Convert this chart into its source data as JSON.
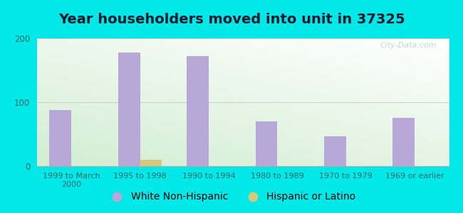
{
  "title": "Year householders moved into unit in 37325",
  "categories": [
    "1999 to March\n2000",
    "1995 to 1998",
    "1990 to 1994",
    "1980 to 1989",
    "1970 to 1979",
    "1969 or earlier"
  ],
  "white_values": [
    88,
    178,
    172,
    70,
    47,
    76
  ],
  "hispanic_values": [
    0,
    10,
    0,
    0,
    0,
    0
  ],
  "white_color": "#b8a8d8",
  "hispanic_color": "#d4c87a",
  "ylim": [
    0,
    200
  ],
  "yticks": [
    0,
    100,
    200
  ],
  "bar_width": 0.32,
  "bg_outer": "#00e8e8",
  "title_fontsize": 14,
  "legend_fontsize": 10,
  "watermark": "City-Data.com"
}
